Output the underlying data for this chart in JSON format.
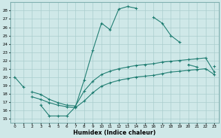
{
  "xlabel": "Humidex (Indice chaleur)",
  "bg_color": "#cfe8e8",
  "grid_color": "#a8cccc",
  "line_color": "#1a7a6e",
  "xlim": [
    -0.5,
    23.5
  ],
  "ylim": [
    14.5,
    29.0
  ],
  "xticks": [
    0,
    1,
    2,
    3,
    4,
    5,
    6,
    7,
    8,
    9,
    10,
    11,
    12,
    13,
    14,
    15,
    16,
    17,
    18,
    19,
    20,
    21,
    22,
    23
  ],
  "yticks": [
    15,
    16,
    17,
    18,
    19,
    20,
    21,
    22,
    23,
    24,
    25,
    26,
    27,
    28
  ],
  "curve1_segments": [
    [
      [
        0,
        1
      ],
      [
        20.0,
        18.8
      ]
    ],
    [
      [
        3,
        4,
        5,
        6,
        7,
        8,
        9,
        10,
        11,
        12,
        13,
        14
      ],
      [
        16.6,
        15.3,
        15.3,
        15.3,
        16.4,
        19.6,
        23.2,
        26.5,
        25.7,
        28.2,
        28.5,
        28.3
      ]
    ],
    [
      [
        16,
        17,
        18,
        19
      ],
      [
        27.2,
        26.5,
        25.0,
        24.2
      ]
    ]
  ],
  "curve2_segments": [
    [
      [
        20,
        21
      ],
      [
        21.5,
        21.2
      ]
    ],
    [
      [
        23
      ],
      [
        21.3
      ]
    ]
  ],
  "curve3_x": [
    2,
    3,
    4,
    5,
    6,
    7,
    8,
    9,
    10,
    11,
    12,
    13,
    14,
    15,
    16,
    17,
    18,
    19,
    20,
    21,
    22,
    23
  ],
  "curve3_y": [
    18.2,
    17.9,
    17.3,
    16.9,
    16.6,
    16.5,
    18.3,
    19.5,
    20.3,
    20.7,
    21.0,
    21.2,
    21.4,
    21.5,
    21.6,
    21.8,
    21.9,
    22.0,
    22.1,
    22.2,
    22.3,
    20.6
  ],
  "curve4_x": [
    2,
    3,
    4,
    5,
    6,
    7,
    8,
    9,
    10,
    11,
    12,
    13,
    14,
    15,
    16,
    17,
    18,
    19,
    20,
    21,
    22,
    23
  ],
  "curve4_y": [
    17.6,
    17.3,
    16.9,
    16.6,
    16.4,
    16.3,
    17.1,
    18.1,
    18.9,
    19.3,
    19.6,
    19.8,
    20.0,
    20.1,
    20.2,
    20.4,
    20.6,
    20.7,
    20.8,
    20.9,
    21.0,
    20.3
  ]
}
